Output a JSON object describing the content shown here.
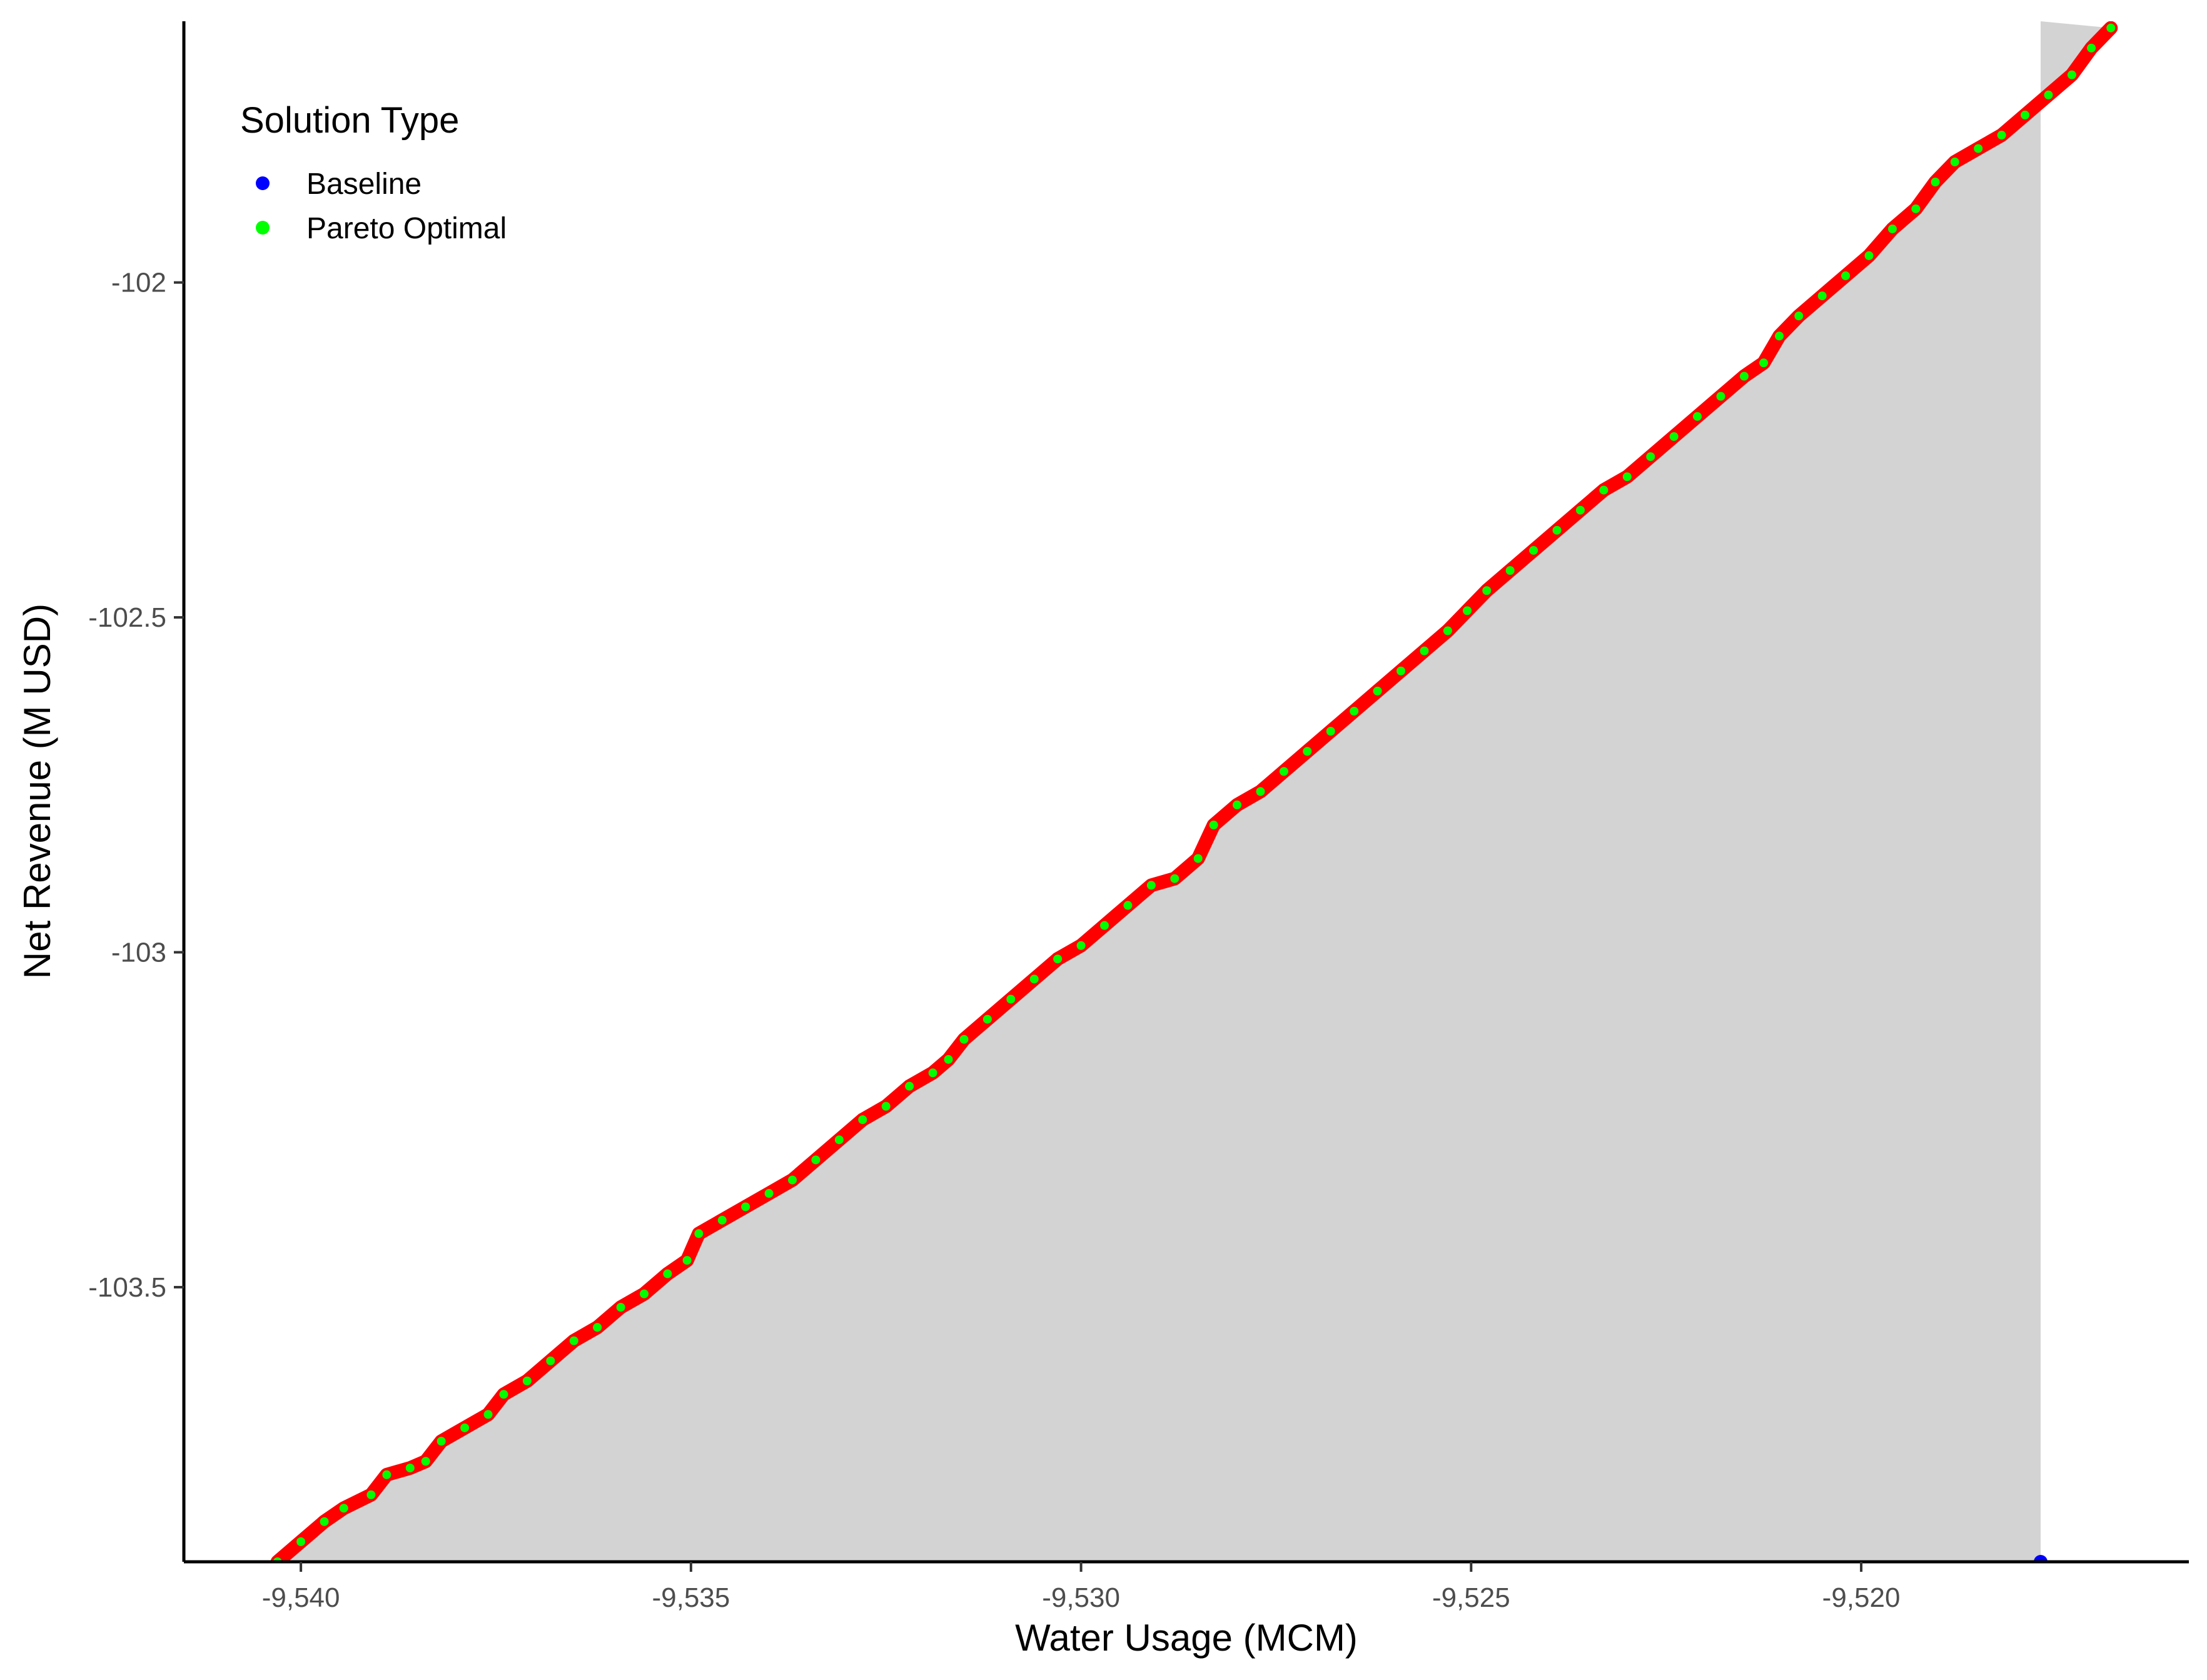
{
  "chart_data": {
    "type": "line",
    "title": "",
    "xlabel": "Water Usage (MCM)",
    "ylabel": "Net Revenue (M USD)",
    "xlim": [
      -9541.5,
      -9515.8
    ],
    "ylim": [
      -103.91,
      -101.61
    ],
    "x_ticks": [
      {
        "value": -9540,
        "label": "-9,540"
      },
      {
        "value": -9535,
        "label": "-9,535"
      },
      {
        "value": -9530,
        "label": "-9,530"
      },
      {
        "value": -9525,
        "label": "-9,525"
      },
      {
        "value": -9520,
        "label": "-9,520"
      }
    ],
    "y_ticks": [
      {
        "value": -102.0,
        "label": "-102"
      },
      {
        "value": -102.5,
        "label": "-102.5"
      },
      {
        "value": -103.0,
        "label": "-103"
      },
      {
        "value": -103.5,
        "label": "-103.5"
      }
    ],
    "grid": false,
    "legend": {
      "title": "Solution Type",
      "position": "top-left",
      "entries": [
        {
          "label": "Baseline",
          "color": "#0000ff"
        },
        {
          "label": "Pareto Optimal",
          "color": "#00ff00"
        }
      ]
    },
    "colors": {
      "frontier_line": "#ff0000",
      "dominated_region": "#d3d3d3",
      "pareto_points": "#00ff00",
      "baseline_point": "#0000ff"
    },
    "series": [
      {
        "name": "Pareto Optimal",
        "color": "#00ff00",
        "points": [
          [
            -9540.3,
            -103.91
          ],
          [
            -9540.0,
            -103.88
          ],
          [
            -9539.7,
            -103.85
          ],
          [
            -9539.45,
            -103.83
          ],
          [
            -9539.1,
            -103.81
          ],
          [
            -9538.9,
            -103.78
          ],
          [
            -9538.6,
            -103.77
          ],
          [
            -9538.4,
            -103.76
          ],
          [
            -9538.2,
            -103.73
          ],
          [
            -9537.9,
            -103.71
          ],
          [
            -9537.6,
            -103.69
          ],
          [
            -9537.4,
            -103.66
          ],
          [
            -9537.1,
            -103.64
          ],
          [
            -9536.8,
            -103.61
          ],
          [
            -9536.5,
            -103.58
          ],
          [
            -9536.2,
            -103.56
          ],
          [
            -9535.9,
            -103.53
          ],
          [
            -9535.6,
            -103.51
          ],
          [
            -9535.3,
            -103.48
          ],
          [
            -9535.05,
            -103.46
          ],
          [
            -9534.9,
            -103.42
          ],
          [
            -9534.6,
            -103.4
          ],
          [
            -9534.3,
            -103.38
          ],
          [
            -9534.0,
            -103.36
          ],
          [
            -9533.7,
            -103.34
          ],
          [
            -9533.4,
            -103.31
          ],
          [
            -9533.1,
            -103.28
          ],
          [
            -9532.8,
            -103.25
          ],
          [
            -9532.5,
            -103.23
          ],
          [
            -9532.2,
            -103.2
          ],
          [
            -9531.9,
            -103.18
          ],
          [
            -9531.7,
            -103.16
          ],
          [
            -9531.5,
            -103.13
          ],
          [
            -9531.2,
            -103.1
          ],
          [
            -9530.9,
            -103.07
          ],
          [
            -9530.6,
            -103.04
          ],
          [
            -9530.3,
            -103.01
          ],
          [
            -9530.0,
            -102.99
          ],
          [
            -9529.7,
            -102.96
          ],
          [
            -9529.4,
            -102.93
          ],
          [
            -9529.1,
            -102.9
          ],
          [
            -9528.8,
            -102.89
          ],
          [
            -9528.5,
            -102.86
          ],
          [
            -9528.3,
            -102.81
          ],
          [
            -9528.0,
            -102.78
          ],
          [
            -9527.7,
            -102.76
          ],
          [
            -9527.4,
            -102.73
          ],
          [
            -9527.1,
            -102.7
          ],
          [
            -9526.8,
            -102.67
          ],
          [
            -9526.5,
            -102.64
          ],
          [
            -9526.2,
            -102.61
          ],
          [
            -9525.9,
            -102.58
          ],
          [
            -9525.6,
            -102.55
          ],
          [
            -9525.3,
            -102.52
          ],
          [
            -9525.05,
            -102.49
          ],
          [
            -9524.8,
            -102.46
          ],
          [
            -9524.5,
            -102.43
          ],
          [
            -9524.2,
            -102.4
          ],
          [
            -9523.9,
            -102.37
          ],
          [
            -9523.6,
            -102.34
          ],
          [
            -9523.3,
            -102.31
          ],
          [
            -9523.0,
            -102.29
          ],
          [
            -9522.7,
            -102.26
          ],
          [
            -9522.4,
            -102.23
          ],
          [
            -9522.1,
            -102.2
          ],
          [
            -9521.8,
            -102.17
          ],
          [
            -9521.5,
            -102.14
          ],
          [
            -9521.25,
            -102.12
          ],
          [
            -9521.05,
            -102.08
          ],
          [
            -9520.8,
            -102.05
          ],
          [
            -9520.5,
            -102.02
          ],
          [
            -9520.2,
            -101.99
          ],
          [
            -9519.9,
            -101.96
          ],
          [
            -9519.6,
            -101.92
          ],
          [
            -9519.3,
            -101.89
          ],
          [
            -9519.05,
            -101.85
          ],
          [
            -9518.8,
            -101.82
          ],
          [
            -9518.5,
            -101.8
          ],
          [
            -9518.2,
            -101.78
          ],
          [
            -9517.9,
            -101.75
          ],
          [
            -9517.6,
            -101.72
          ],
          [
            -9517.3,
            -101.69
          ],
          [
            -9517.05,
            -101.65
          ],
          [
            -9516.8,
            -101.62
          ]
        ]
      },
      {
        "name": "Baseline",
        "color": "#0000ff",
        "points": [
          [
            -9517.7,
            -103.91
          ]
        ]
      }
    ]
  }
}
